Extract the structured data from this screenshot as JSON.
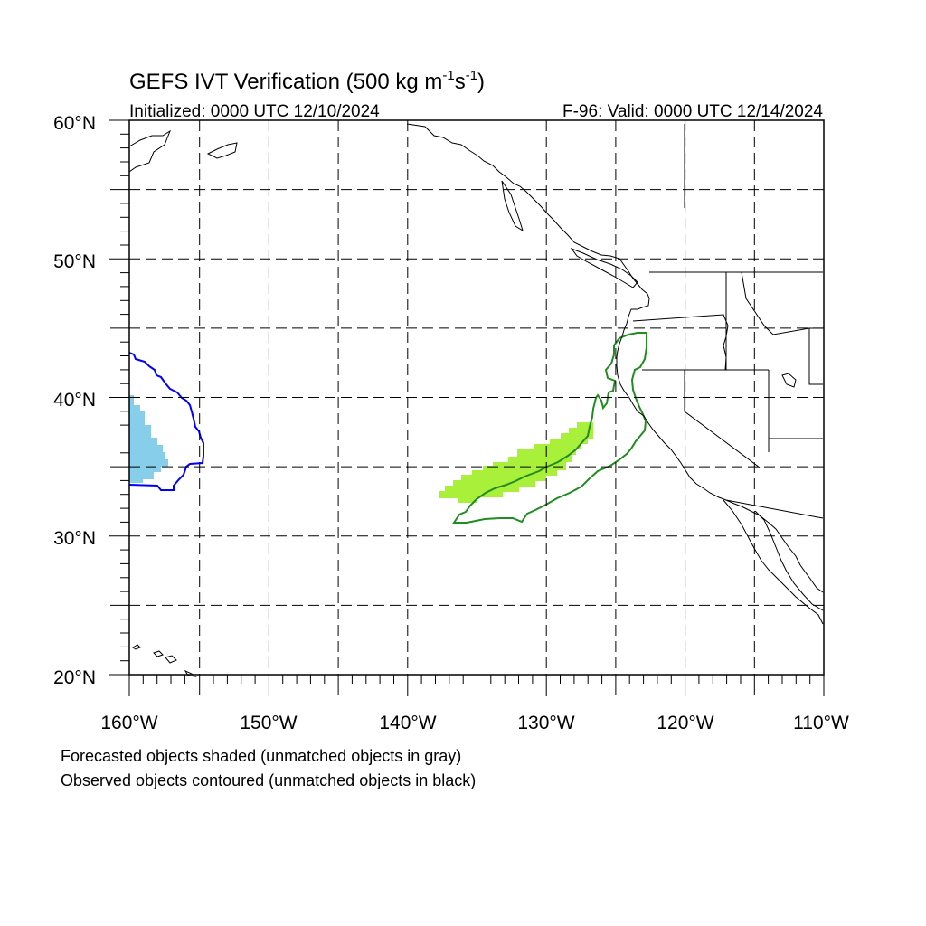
{
  "title": {
    "main": "GEFS IVT Verification (500 kg m",
    "sup1": "-1",
    "mid": "s",
    "sup2": "-1",
    "end": ")"
  },
  "initialized": "Initialized: 0000 UTC 12/10/2024",
  "valid": "F-96: Valid: 0000 UTC 12/14/2024",
  "axes": {
    "lon_range": [
      -160,
      -110
    ],
    "lat_range": [
      20,
      60
    ],
    "x_ticks": [
      "160°W",
      "150°W",
      "140°W",
      "130°W",
      "120°W",
      "110°W"
    ],
    "y_ticks": [
      "20°N",
      "30°N",
      "40°N",
      "50°N",
      "60°N"
    ],
    "grid": "dashed every 5°"
  },
  "legend": {
    "line1": "Forecasted objects shaded (unmatched objects in gray)",
    "line2": "Observed objects contoured (unmatched objects in black)"
  },
  "objects": [
    {
      "kind": "forecast-shaded",
      "color": "#87ceeb",
      "matched_observed_color": "#0000ff",
      "region": "near 160W, 34-40N"
    },
    {
      "kind": "forecast-shaded",
      "color": "#a8f03a",
      "matched_observed_color": "#228b22",
      "region": "137W-126W, 33-38N"
    }
  ],
  "colors": {
    "blue_fill": "#87ceeb",
    "blue_contour": "#0000ff",
    "green_fill": "#a8f03a",
    "green_contour": "#228b22"
  }
}
